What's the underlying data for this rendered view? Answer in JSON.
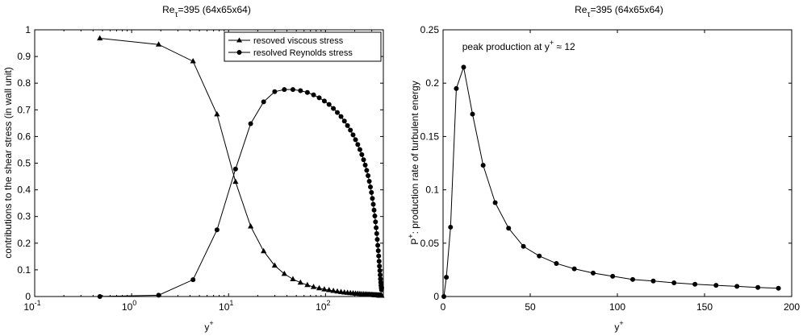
{
  "chart_data": [
    {
      "type": "line",
      "title": "Re",
      "title_sub": "τ",
      "title_rest": "=395 (64x65x64)",
      "xlabel": "y",
      "xlabel_sup": "+",
      "ylabel": "contributions to  the shear stress (in wall unit)",
      "xscale": "log",
      "xlim": [
        0.1,
        395
      ],
      "ylim": [
        0,
        1
      ],
      "x_ticks": [
        {
          "value": 0.1,
          "base": "10",
          "exp": "-1"
        },
        {
          "value": 1,
          "base": "10",
          "exp": "0"
        },
        {
          "value": 10,
          "base": "10",
          "exp": "1"
        },
        {
          "value": 100,
          "base": "10",
          "exp": "2"
        }
      ],
      "y_ticks": [
        "0",
        "0.1",
        "0.2",
        "0.3",
        "0.4",
        "0.5",
        "0.6",
        "0.7",
        "0.8",
        "0.9",
        "1"
      ],
      "legend_position": "top-right",
      "series": [
        {
          "name": "resoved viscous stress",
          "marker": "triangle",
          "x": [
            0.47,
            1.9,
            4.3,
            7.6,
            11.8,
            16.9,
            23,
            29.9,
            37.6,
            46.1,
            55.2,
            65,
            75.3,
            86.1,
            97.3,
            108.8,
            120.6,
            132.5,
            144.5,
            156.6,
            168.6,
            180.6,
            192.4,
            204,
            215.3,
            226.3,
            236.9,
            247.1,
            256.8,
            266,
            274.7,
            282.9,
            290.6,
            297.8,
            304.6,
            311,
            317,
            322.6,
            327.9,
            332.8,
            337.5,
            342,
            346.2,
            350.1,
            353.7,
            357.1,
            360.3,
            363.3,
            366.2,
            368.9,
            371.4,
            373.8,
            376.1,
            378.2,
            380.2
          ],
          "y": [
            0.968,
            0.945,
            0.882,
            0.683,
            0.43,
            0.263,
            0.17,
            0.116,
            0.085,
            0.065,
            0.052,
            0.043,
            0.036,
            0.031,
            0.027,
            0.024,
            0.021,
            0.019,
            0.017,
            0.015,
            0.014,
            0.013,
            0.012,
            0.011,
            0.0105,
            0.0098,
            0.0092,
            0.0087,
            0.0082,
            0.0078,
            0.0074,
            0.007,
            0.0067,
            0.0064,
            0.0061,
            0.0058,
            0.0056,
            0.0054,
            0.0052,
            0.005,
            0.0048,
            0.0046,
            0.0045,
            0.0043,
            0.0042,
            0.0041,
            0.0039,
            0.0038,
            0.0037,
            0.0036,
            0.0035,
            0.0034,
            0.0033,
            0.0032,
            0.0031
          ]
        },
        {
          "name": "resolved Reynolds stress",
          "marker": "circle",
          "x": [
            0.47,
            1.9,
            4.3,
            7.6,
            11.8,
            16.9,
            23,
            29.9,
            37.6,
            46.1,
            55.2,
            65,
            75.3,
            86.1,
            97.3,
            108.8,
            120.6,
            132.5,
            144.5,
            156.6,
            168.6,
            180.6,
            192.4,
            204,
            215.3,
            226.3,
            236.9,
            247.1,
            256.8,
            266,
            274.7,
            282.9,
            290.6,
            297.8,
            304.6,
            311,
            317,
            322.6,
            327.9,
            332.8,
            337.5,
            342,
            346.2,
            350.1,
            353.7,
            357.1,
            360.3,
            363.3,
            366.2,
            368.9,
            371.4,
            373.8,
            376.1,
            378.2,
            380.2
          ],
          "y": [
            0.0,
            0.005,
            0.063,
            0.25,
            0.478,
            0.648,
            0.73,
            0.768,
            0.776,
            0.776,
            0.772,
            0.765,
            0.756,
            0.745,
            0.733,
            0.72,
            0.705,
            0.69,
            0.675,
            0.658,
            0.641,
            0.624,
            0.606,
            0.588,
            0.57,
            0.551,
            0.532,
            0.513,
            0.493,
            0.473,
            0.453,
            0.432,
            0.411,
            0.39,
            0.368,
            0.346,
            0.324,
            0.302,
            0.28,
            0.258,
            0.236,
            0.214,
            0.192,
            0.172,
            0.152,
            0.132,
            0.114,
            0.097,
            0.081,
            0.066,
            0.053,
            0.042,
            0.033,
            0.025,
            0.033
          ]
        }
      ]
    },
    {
      "type": "line",
      "title": "Re",
      "title_sub": "τ",
      "title_rest": "=395 (64x65x64)",
      "xlabel": "y",
      "xlabel_sup": "+",
      "ylabel": "P",
      "ylabel_sup": "+",
      "ylabel_rest": ": production rate of turbulent energy",
      "xscale": "linear",
      "xlim": [
        0,
        200
      ],
      "ylim": [
        0,
        0.25
      ],
      "x_ticks": [
        "0",
        "50",
        "100",
        "150",
        "200"
      ],
      "y_ticks": [
        "0",
        "0.05",
        "0.1",
        "0.15",
        "0.2",
        "0.25"
      ],
      "annotation": {
        "text": "peak production at y",
        "sup": "+",
        "rest": " ≈ 12",
        "x": 11,
        "y": 0.231
      },
      "series": [
        {
          "marker": "circle",
          "x": [
            0.47,
            1.9,
            4.3,
            7.6,
            11.8,
            16.9,
            23,
            29.9,
            37.6,
            46.1,
            55.2,
            65,
            75.3,
            86.1,
            97.3,
            108.8,
            120.6,
            132.5,
            144.5,
            156.6,
            168.6,
            180.6,
            192.4
          ],
          "y": [
            0.0,
            0.018,
            0.065,
            0.195,
            0.215,
            0.171,
            0.123,
            0.088,
            0.064,
            0.047,
            0.038,
            0.031,
            0.026,
            0.022,
            0.019,
            0.016,
            0.0145,
            0.0128,
            0.0115,
            0.0105,
            0.0095,
            0.0085,
            0.0077
          ]
        }
      ]
    }
  ]
}
